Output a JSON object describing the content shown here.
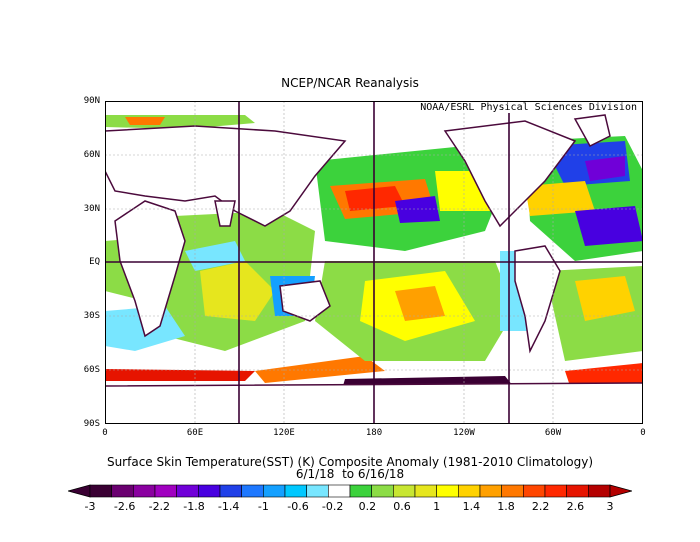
{
  "map": {
    "title": "NCEP/NCAR Reanalysis",
    "credit": "NOAA/ESRL Physical Sciences Division",
    "lat_labels": [
      "90N",
      "60N",
      "30N",
      "EQ",
      "30S",
      "60S",
      "90S"
    ],
    "lon_labels": [
      "0",
      "60E",
      "120E",
      "180",
      "120W",
      "60W",
      "0"
    ],
    "caption_line1": "Surface Skin Temperature(SST) (K) Composite Anomaly (1981-2010 Climatology)",
    "caption_line2": "6/1/18  to 6/16/18",
    "colorbar": {
      "ticks": [
        "-3",
        "-2.6",
        "-2.2",
        "-1.8",
        "-1.4",
        "-1",
        "-0.6",
        "-0.2",
        "0.2",
        "0.6",
        "1",
        "1.4",
        "1.8",
        "2.2",
        "2.6",
        "3"
      ],
      "colors": [
        "#3a0033",
        "#6a0070",
        "#8a00a0",
        "#a000c0",
        "#7000d8",
        "#4800e0",
        "#2040e8",
        "#1e78ff",
        "#14a0ff",
        "#00c8ff",
        "#78e6ff",
        "#ffffff",
        "#3cd23c",
        "#8cdc46",
        "#c8e632",
        "#e6e61e",
        "#ffff00",
        "#ffd200",
        "#ffa000",
        "#ff7800",
        "#ff4600",
        "#ff2800",
        "#e61400",
        "#b40000"
      ]
    }
  }
}
